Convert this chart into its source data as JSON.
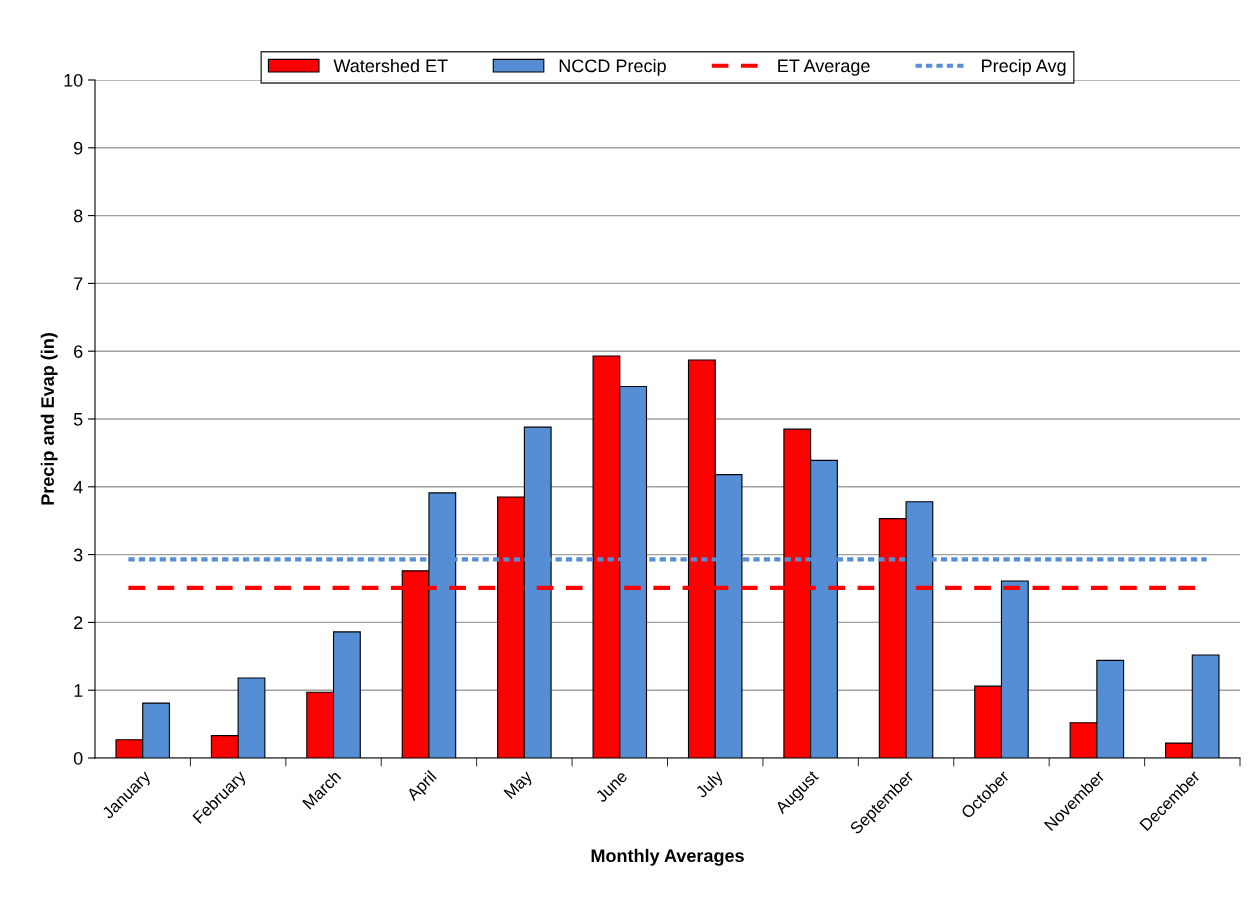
{
  "chart_data": {
    "type": "bar",
    "xlabel": "Monthly Averages",
    "ylabel": "Precip and Evap (in)",
    "categories": [
      "January",
      "February",
      "March",
      "April",
      "May",
      "June",
      "July",
      "August",
      "September",
      "October",
      "November",
      "December"
    ],
    "series": [
      {
        "name": "Watershed ET",
        "color": "#ff0000",
        "values": [
          0.27,
          0.33,
          0.97,
          2.76,
          3.85,
          5.93,
          5.87,
          4.85,
          3.53,
          1.06,
          0.52,
          0.22
        ]
      },
      {
        "name": "NCCD Precip",
        "color": "#558ed5",
        "values": [
          0.81,
          1.18,
          1.86,
          3.91,
          4.88,
          5.48,
          4.18,
          4.39,
          3.78,
          2.61,
          1.44,
          1.52
        ]
      }
    ],
    "ref_lines": [
      {
        "axis": "y",
        "value": 2.51,
        "label": "ET Average",
        "color": "#ff0000",
        "line_style": "dashed"
      },
      {
        "axis": "y",
        "value": 2.93,
        "label": "Precip Avg",
        "color": "#558ed5",
        "line_style": "dotted"
      }
    ],
    "ylim": [
      0,
      10
    ],
    "yticks": [
      0,
      1,
      2,
      3,
      4,
      5,
      6,
      7,
      8,
      9,
      10
    ],
    "grid": "y",
    "legend": "top"
  }
}
